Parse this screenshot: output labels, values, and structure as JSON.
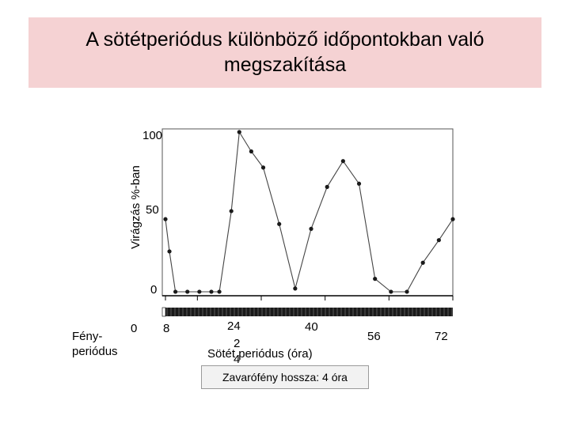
{
  "title": "A sötétperiódus különböző időpontokban való megszakítása",
  "note": "Zavarófény hossza: 4 óra",
  "chart_data": {
    "type": "line",
    "title": "A sötétperiódus különböző időpontokban való megszakítása",
    "xlabel": "Sötét periódus (óra)",
    "ylabel": "Virágzás %-ban",
    "xlim": [
      0,
      72
    ],
    "ylim": [
      0,
      100
    ],
    "x_tick_labels": [
      "0",
      "8",
      "24",
      "2 4",
      "40",
      "56",
      "72"
    ],
    "y_tick_labels": [
      "100",
      "50",
      "0"
    ],
    "light_period_label": "Fény- periódus",
    "grid": false,
    "series": [
      {
        "x": [
          0,
          1,
          2.5,
          5.5,
          8.5,
          11.5,
          13.5,
          16.5,
          18.5,
          21.5,
          24.5,
          28.5,
          32.5,
          36.5,
          40.5,
          44.5,
          48.5,
          52.5,
          56.5,
          60.5,
          64.5,
          68.5,
          72
        ],
        "y": [
          46,
          26,
          1,
          1,
          1,
          1,
          1,
          51,
          100,
          88,
          78,
          43,
          3,
          40,
          66,
          82,
          68,
          9,
          1,
          1,
          19,
          33,
          46
        ]
      }
    ]
  }
}
